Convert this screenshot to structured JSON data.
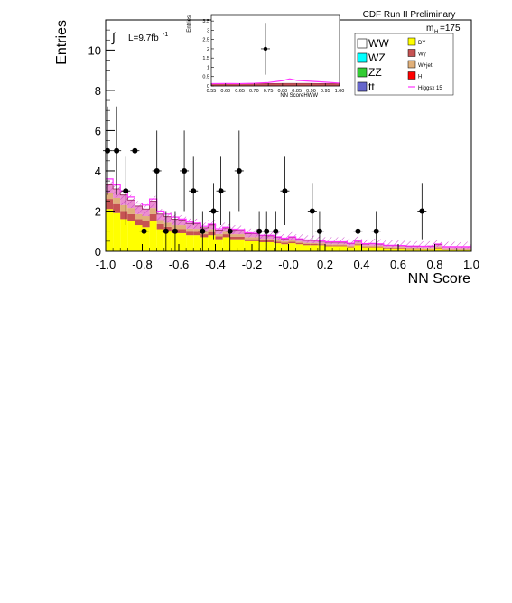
{
  "chart_data": {
    "type": "bar",
    "header": "CDF Run II Preliminary",
    "mass_label": "m",
    "mass_sub": "H",
    "mass_value": "=175",
    "luminosity_prefix": "L=9.7fb",
    "luminosity_sup": "-1",
    "xlabel": "NN Score",
    "ylabel": "Entries",
    "xlim": [
      -1.0,
      1.0
    ],
    "ylim": [
      0,
      11.5
    ],
    "x_ticks": [
      "-1.0",
      "-0.8",
      "-0.6",
      "-0.4",
      "-0.2",
      "-0.0",
      "0.2",
      "0.4",
      "0.6",
      "0.8",
      "1.0"
    ],
    "y_ticks": [
      "0",
      "2",
      "4",
      "6",
      "8",
      "10"
    ],
    "bin_edges": [
      -1.0,
      -0.96,
      -0.92,
      -0.88,
      -0.84,
      -0.8,
      -0.76,
      -0.72,
      -0.68,
      -0.64,
      -0.6,
      -0.56,
      -0.52,
      -0.48,
      -0.44,
      -0.4,
      -0.36,
      -0.32,
      -0.28,
      -0.24,
      -0.2,
      -0.16,
      -0.12,
      -0.08,
      -0.04,
      0.0,
      0.04,
      0.08,
      0.12,
      0.16,
      0.2,
      0.24,
      0.28,
      0.32,
      0.36,
      0.4,
      0.44,
      0.48,
      0.52,
      0.56,
      0.6,
      0.64,
      0.68,
      0.72,
      0.76,
      0.8,
      0.84,
      0.88,
      0.92,
      0.96,
      1.0
    ],
    "stack_order": [
      "WW",
      "WZ",
      "ZZ",
      "ttbar",
      "DY",
      "Wgamma",
      "Wjet",
      "H"
    ],
    "background_stack": [
      {
        "name": "DY",
        "color": "#ffff00",
        "values": [
          2.1,
          1.9,
          1.6,
          1.5,
          1.3,
          1.2,
          1.5,
          1.1,
          1.0,
          0.9,
          0.9,
          0.8,
          0.8,
          0.7,
          0.8,
          0.6,
          0.7,
          0.6,
          0.6,
          0.5,
          0.5,
          0.45,
          0.45,
          0.4,
          0.35,
          0.4,
          0.35,
          0.3,
          0.3,
          0.3,
          0.25,
          0.25,
          0.25,
          0.2,
          0.3,
          0.2,
          0.2,
          0.2,
          0.15,
          0.15,
          0.15,
          0.12,
          0.12,
          0.12,
          0.12,
          0.15,
          0.1,
          0.1,
          0.1,
          0.1
        ]
      },
      {
        "name": "Wgamma",
        "color": "#c65353",
        "values": [
          0.5,
          0.45,
          0.4,
          0.35,
          0.3,
          0.3,
          0.35,
          0.25,
          0.22,
          0.2,
          0.2,
          0.18,
          0.17,
          0.15,
          0.16,
          0.14,
          0.15,
          0.13,
          0.13,
          0.1,
          0.1,
          0.09,
          0.09,
          0.08,
          0.08,
          0.08,
          0.07,
          0.06,
          0.06,
          0.05,
          0.05,
          0.05,
          0.05,
          0.04,
          0.05,
          0.04,
          0.04,
          0.04,
          0.03,
          0.03,
          0.03,
          0.03,
          0.03,
          0.02,
          0.02,
          0.03,
          0.02,
          0.02,
          0.02,
          0.02
        ]
      },
      {
        "name": "Wjet",
        "color": "#e0b07a",
        "values": [
          0.3,
          0.3,
          0.3,
          0.3,
          0.25,
          0.25,
          0.3,
          0.2,
          0.2,
          0.2,
          0.2,
          0.15,
          0.15,
          0.12,
          0.15,
          0.12,
          0.12,
          0.12,
          0.12,
          0.1,
          0.1,
          0.08,
          0.08,
          0.08,
          0.07,
          0.07,
          0.06,
          0.06,
          0.05,
          0.05,
          0.05,
          0.05,
          0.05,
          0.04,
          0.05,
          0.04,
          0.04,
          0.04,
          0.03,
          0.03,
          0.03,
          0.03,
          0.03,
          0.03,
          0.03,
          0.05,
          0.03,
          0.03,
          0.03,
          0.03
        ]
      },
      {
        "name": "WW",
        "color": "#eb8fd0",
        "values": [
          0.4,
          0.45,
          0.5,
          0.4,
          0.4,
          0.35,
          0.35,
          0.3,
          0.3,
          0.3,
          0.25,
          0.25,
          0.25,
          0.2,
          0.2,
          0.2,
          0.2,
          0.2,
          0.18,
          0.18,
          0.17,
          0.16,
          0.15,
          0.14,
          0.12,
          0.15,
          0.12,
          0.12,
          0.12,
          0.1,
          0.1,
          0.1,
          0.1,
          0.1,
          0.1,
          0.08,
          0.1,
          0.07,
          0.08,
          0.08,
          0.07,
          0.07,
          0.07,
          0.07,
          0.08,
          0.1,
          0.07,
          0.07,
          0.07,
          0.07
        ]
      }
    ],
    "signal_line": {
      "color": "#ff33ff",
      "values": [
        3.6,
        3.3,
        3.0,
        2.7,
        2.4,
        2.3,
        2.6,
        2.0,
        1.85,
        1.7,
        1.6,
        1.45,
        1.4,
        1.25,
        1.35,
        1.12,
        1.2,
        1.1,
        1.08,
        0.92,
        0.9,
        0.8,
        0.8,
        0.72,
        0.65,
        0.72,
        0.62,
        0.56,
        0.55,
        0.52,
        0.47,
        0.47,
        0.47,
        0.4,
        0.52,
        0.38,
        0.39,
        0.37,
        0.3,
        0.3,
        0.29,
        0.26,
        0.26,
        0.25,
        0.26,
        0.36,
        0.23,
        0.23,
        0.23,
        0.23
      ]
    },
    "data_points": [
      {
        "x": -0.99,
        "y": 5,
        "err": 2.2
      },
      {
        "x": -0.94,
        "y": 5,
        "err": 2.2
      },
      {
        "x": -0.89,
        "y": 3,
        "err": 1.7
      },
      {
        "x": -0.84,
        "y": 5,
        "err": 2.2
      },
      {
        "x": -0.79,
        "y": 1,
        "err": 1.0
      },
      {
        "x": -0.72,
        "y": 4,
        "err": 2.0
      },
      {
        "x": -0.67,
        "y": 1,
        "err": 1.0
      },
      {
        "x": -0.62,
        "y": 1,
        "err": 1.0
      },
      {
        "x": -0.57,
        "y": 4,
        "err": 2.0
      },
      {
        "x": -0.52,
        "y": 3,
        "err": 1.7
      },
      {
        "x": -0.47,
        "y": 1,
        "err": 1.0
      },
      {
        "x": -0.41,
        "y": 2,
        "err": 1.4
      },
      {
        "x": -0.37,
        "y": 3,
        "err": 1.7
      },
      {
        "x": -0.32,
        "y": 1,
        "err": 1.0
      },
      {
        "x": -0.27,
        "y": 4,
        "err": 2.0
      },
      {
        "x": -0.16,
        "y": 1,
        "err": 1.0
      },
      {
        "x": -0.12,
        "y": 1,
        "err": 1.0
      },
      {
        "x": -0.07,
        "y": 1,
        "err": 1.0
      },
      {
        "x": -0.02,
        "y": 3,
        "err": 1.7
      },
      {
        "x": 0.13,
        "y": 2,
        "err": 1.4
      },
      {
        "x": 0.17,
        "y": 1,
        "err": 1.0
      },
      {
        "x": 0.38,
        "y": 1,
        "err": 1.0
      },
      {
        "x": 0.48,
        "y": 1,
        "err": 1.0
      },
      {
        "x": 0.73,
        "y": 2,
        "err": 1.4
      }
    ],
    "legend": {
      "left": [
        {
          "label": "WW",
          "color": "#ffffff"
        },
        {
          "label": "WZ",
          "color": "#00ffff"
        },
        {
          "label": "ZZ",
          "color": "#33cc33"
        },
        {
          "label": "tt",
          "color": "#6666cc"
        }
      ],
      "right": [
        {
          "label": "DY",
          "color": "#ffff00"
        },
        {
          "label": "Wγ",
          "color": "#c65353"
        },
        {
          "label": "W+jet",
          "color": "#e0b07a"
        },
        {
          "label": "H",
          "color": "#ff0000"
        },
        {
          "label": "Higgsx 15",
          "color": "#ff33ff",
          "line": true
        }
      ]
    },
    "inset": {
      "xlabel": "NN ScoreHWW",
      "ylabel": "Entries",
      "xlim": [
        0.55,
        1.0
      ],
      "ylim": [
        0,
        3.8
      ],
      "x_ticks": [
        "0.55",
        "0.60",
        "0.65",
        "0.70",
        "0.75",
        "0.80",
        "0.85",
        "0.90",
        "0.95",
        "1.00"
      ],
      "y_ticks": [
        "0",
        "0.5",
        "1",
        "1.5",
        "2",
        "2.5",
        "3",
        "3.5"
      ],
      "data_point": {
        "x": 0.74,
        "y": 2,
        "err": 1.4
      },
      "signal_line": {
        "x": [
          0.55,
          0.6,
          0.65,
          0.7,
          0.75,
          0.8,
          0.825,
          0.85,
          0.9,
          0.95,
          1.0
        ],
        "y": [
          0.12,
          0.13,
          0.12,
          0.14,
          0.18,
          0.28,
          0.38,
          0.3,
          0.25,
          0.2,
          0.15
        ]
      },
      "background_top": {
        "x": [
          0.55,
          0.6,
          0.65,
          0.7,
          0.75,
          0.8,
          0.85,
          0.9,
          0.95,
          1.0
        ],
        "y": [
          0.12,
          0.12,
          0.12,
          0.13,
          0.13,
          0.14,
          0.14,
          0.14,
          0.13,
          0.13
        ]
      }
    }
  }
}
